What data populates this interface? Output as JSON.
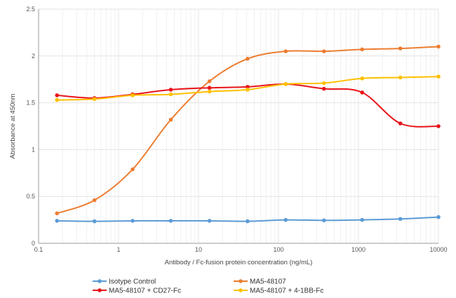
{
  "chart_data": {
    "type": "line",
    "xlabel": "Antibody / Fc-fusion protein concentration (ng/mL)",
    "ylabel": "Absorbance at 450nm",
    "x_scale": "log",
    "xlim": [
      0.1,
      10000
    ],
    "ylim": [
      0,
      2.5
    ],
    "x_ticks": [
      "0.1",
      "1",
      "10",
      "100",
      "1000",
      "10000"
    ],
    "y_ticks": [
      "0",
      "0.5",
      "1",
      "1.5",
      "2",
      "2.5"
    ],
    "grid": true,
    "legend_position": "bottom",
    "x": [
      0.17,
      0.5,
      1.5,
      4.5,
      13.7,
      41,
      123,
      370,
      1111,
      3333,
      10000
    ],
    "series": [
      {
        "name": "Isotype Control",
        "color": "#5b9bd5",
        "values": [
          0.24,
          0.235,
          0.24,
          0.24,
          0.24,
          0.235,
          0.25,
          0.245,
          0.25,
          0.26,
          0.28
        ]
      },
      {
        "name": "MA5-48107",
        "color": "#ed7d31",
        "values": [
          0.32,
          0.46,
          0.79,
          1.32,
          1.73,
          1.97,
          2.05,
          2.05,
          2.07,
          2.08,
          2.1
        ]
      },
      {
        "name": "MA5-48107 + CD27-Fc",
        "color": "#e8141a",
        "values": [
          1.58,
          1.55,
          1.59,
          1.64,
          1.66,
          1.67,
          1.7,
          1.65,
          1.61,
          1.28,
          1.25
        ]
      },
      {
        "name": "MA5-48107 + 4-1BB-Fc",
        "color": "#ffc000",
        "values": [
          1.53,
          1.54,
          1.58,
          1.59,
          1.62,
          1.64,
          1.7,
          1.71,
          1.76,
          1.77,
          1.78
        ]
      }
    ]
  }
}
